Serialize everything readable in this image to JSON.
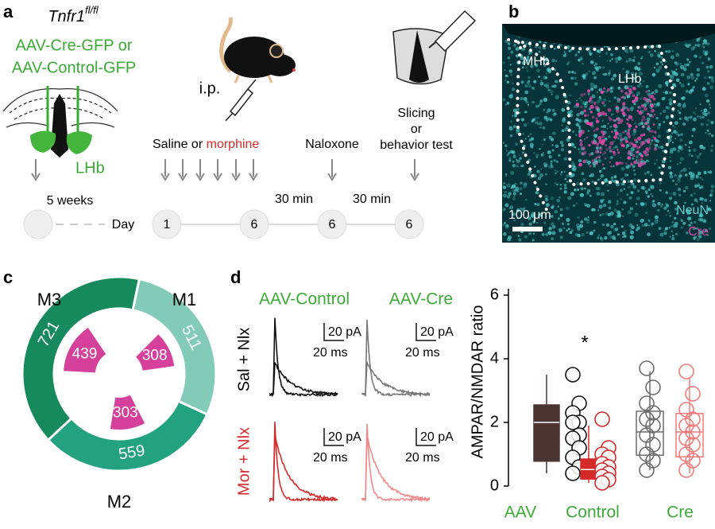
{
  "panels": {
    "a": {
      "label": "a",
      "genotype": "Tnfr1",
      "genotype_sup": "fl/fl",
      "virus_line1": "AAV-Cre-GFP or",
      "virus_line2": "AAV-Control-GFP",
      "region": "LHb",
      "route": "i.p.",
      "treatment_prefix": "Saline or",
      "treatment_drug": "morphine",
      "challenge": "Naloxone",
      "outcome_line1": "Slicing",
      "outcome_line2": "or",
      "outcome_line3": "behavior test",
      "wait": "5 weeks",
      "day_label": "Day",
      "days": [
        "1",
        "6",
        "6",
        "6"
      ],
      "intervals": [
        "30 min",
        "30 min"
      ]
    },
    "b": {
      "label": "b",
      "regions": [
        "MHb",
        "LHb"
      ],
      "stain1": "NeuN",
      "stain2": "Cre",
      "scale": "100 μm"
    },
    "c": {
      "label": "c"
    },
    "d": {
      "label": "d",
      "groups": [
        "AAV-Control",
        "AAV-Cre"
      ],
      "conditions": [
        "Sal + Nlx",
        "Mor + Nlx"
      ],
      "scale_current": "20 pA",
      "scale_time": "20 ms"
    }
  },
  "chart_data": [
    {
      "type": "pie",
      "donut": true,
      "categories": [
        "M1",
        "M2",
        "M3"
      ],
      "series": [
        {
          "colors": [
            "#82cbb9",
            "#22a27f",
            "#168a5c"
          ],
          "values": [
            511,
            559,
            721
          ]
        },
        {
          "color": "#d5409b",
          "values": [
            308,
            303,
            439
          ]
        }
      ]
    },
    {
      "type": "box",
      "ylabel": "AMPAR/NMDAR ratio",
      "xlabel": "AAV",
      "categories": [
        "Control",
        "Cre"
      ],
      "annotation": "*",
      "ylim": [
        0,
        6.2
      ],
      "yticks": [
        0,
        2,
        4,
        6
      ],
      "boxes": [
        {
          "color": "#4a3431",
          "filled": true,
          "whisker": [
            0.4,
            3.5
          ],
          "q1": 0.78,
          "median": 2.0,
          "q3": 2.55,
          "points": [
            3.5,
            2.6,
            2.3,
            2.0,
            2.0,
            1.6,
            1.5,
            1.2,
            0.9,
            0.6,
            0.4
          ]
        },
        {
          "color": "#d42a2a",
          "filled": true,
          "whisker": [
            0.1,
            1.9
          ],
          "q1": 0.22,
          "median": 0.52,
          "q3": 0.85,
          "points": [
            2.1,
            1.2,
            1.0,
            0.9,
            0.7,
            0.6,
            0.5,
            0.4,
            0.3,
            0.2,
            0.1
          ]
        },
        {
          "color": "#6b6b6b",
          "filled": false,
          "whisker": [
            0.5,
            3.6
          ],
          "q1": 0.97,
          "median": 1.7,
          "q3": 2.35,
          "points": [
            3.7,
            3.1,
            2.6,
            2.3,
            2.1,
            1.9,
            1.6,
            1.3,
            1.0,
            0.8,
            0.5
          ]
        },
        {
          "color": "#f07a7a",
          "filled": false,
          "whisker": [
            0.4,
            3.4
          ],
          "q1": 0.92,
          "median": 1.7,
          "q3": 2.28,
          "points": [
            3.6,
            2.9,
            2.4,
            2.1,
            1.9,
            1.7,
            1.5,
            1.3,
            1.0,
            0.8,
            0.5
          ]
        }
      ]
    }
  ]
}
